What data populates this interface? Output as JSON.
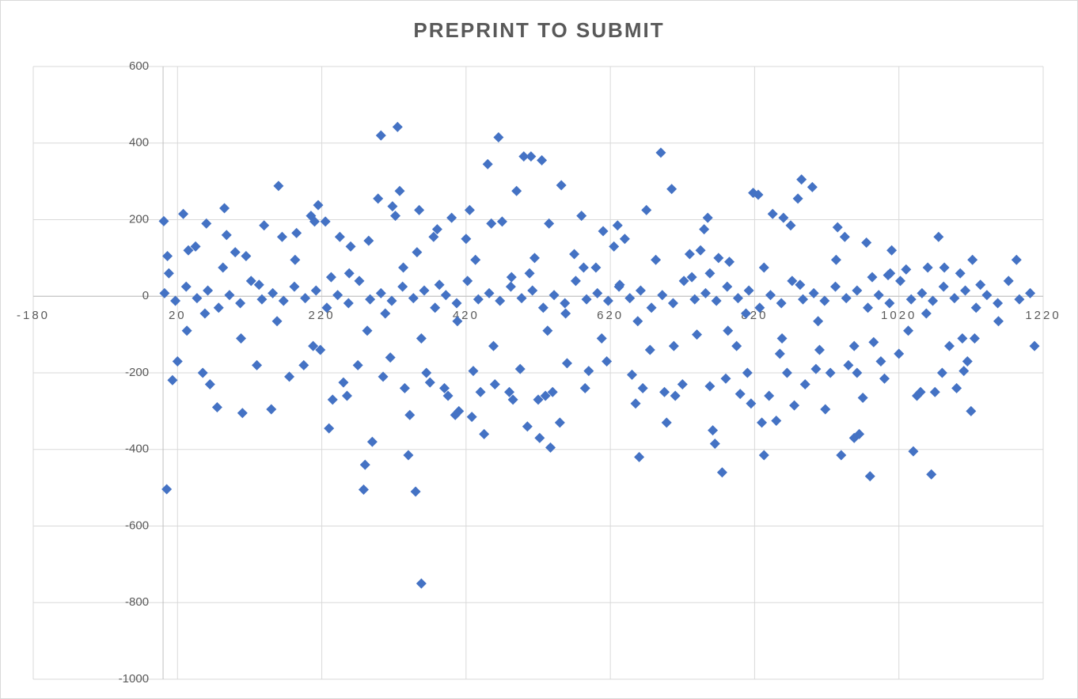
{
  "chart_data": {
    "type": "scatter",
    "title": "PREPRINT TO SUBMIT",
    "color": "#4472c4",
    "grid": true,
    "xlim": [
      -180,
      1220
    ],
    "xticks": [
      -180,
      20,
      220,
      420,
      620,
      820,
      1020,
      1220
    ],
    "ylim": [
      -1000,
      600
    ],
    "yticks": [
      -1000,
      -800,
      -600,
      -400,
      -200,
      0,
      200,
      400,
      600
    ],
    "x": [
      1,
      5,
      13,
      28,
      6,
      20,
      35,
      45,
      60,
      55,
      65,
      75,
      85,
      88,
      100,
      110,
      115,
      130,
      140,
      150,
      160,
      165,
      175,
      185,
      195,
      205,
      210,
      215,
      218,
      225,
      230,
      235,
      245,
      250,
      255,
      260,
      270,
      278,
      280,
      285,
      290,
      298,
      302,
      305,
      315,
      318,
      322,
      325,
      328,
      335,
      340,
      342,
      350,
      352,
      355,
      358,
      365,
      370,
      375,
      380,
      390,
      395,
      400,
      405,
      410,
      420,
      425,
      428,
      430,
      440,
      445,
      450,
      455,
      460,
      465,
      470,
      480,
      485,
      490,
      495,
      500,
      505,
      510,
      515,
      520,
      522,
      525,
      530,
      535,
      537,
      540,
      550,
      552,
      560,
      570,
      580,
      585,
      590,
      600,
      610,
      615,
      625,
      630,
      640,
      650,
      655,
      660,
      665,
      670,
      675,
      690,
      695,
      698,
      705,
      710,
      720,
      730,
      740,
      745,
      750,
      755,
      758,
      762,
      765,
      770,
      775,
      780,
      785,
      795,
      800,
      810,
      815,
      818,
      825,
      830,
      833,
      840,
      845,
      850,
      855,
      860,
      865,
      870,
      875,
      880,
      885,
      890,
      900,
      905,
      910,
      918,
      925,
      935,
      940,
      945,
      950,
      958,
      962,
      965,
      970,
      975,
      980,
      985,
      995,
      1000,
      1005,
      1010,
      1020,
      1030,
      1040,
      1045,
      1050,
      1060,
      1065,
      1070,
      1075,
      1080,
      1090,
      1100,
      1105,
      1110,
      1115,
      1120,
      1122,
      1125,
      2,
      17,
      32,
      47,
      62,
      77,
      92,
      107,
      122,
      137,
      152,
      167,
      182,
      197,
      212,
      227,
      242,
      257,
      272,
      287,
      302,
      317,
      332,
      347,
      362,
      377,
      392,
      407,
      422,
      437,
      452,
      467,
      482,
      497,
      512,
      527,
      542,
      557,
      572,
      587,
      602,
      617,
      632,
      647,
      662,
      677,
      692,
      707,
      722,
      737,
      752,
      767,
      782,
      797,
      812,
      827,
      842,
      857,
      872,
      887,
      902,
      917,
      932,
      947,
      962,
      977,
      992,
      1007,
      1022,
      1037,
      1052,
      1067,
      1082,
      1097,
      1112,
      1127,
      1142,
      1157,
      1172,
      1187,
      1202,
      8,
      33,
      58,
      83,
      108,
      133,
      158,
      183,
      208,
      233,
      258,
      283,
      308,
      333,
      358,
      383,
      408,
      433,
      458,
      483,
      508,
      533,
      558,
      583,
      608,
      633,
      658,
      683,
      708,
      733,
      758,
      783,
      808,
      833,
      858,
      883,
      908,
      933,
      958,
      983,
      1008,
      1033,
      1058,
      1083,
      1108,
      1133,
      1158,
      1183,
      1208
    ],
    "values": [
      196,
      -504,
      -219,
      215,
      105,
      -170,
      120,
      130,
      190,
      -200,
      -230,
      -290,
      230,
      160,
      115,
      -305,
      105,
      -180,
      185,
      -295,
      288,
      155,
      -210,
      165,
      -180,
      210,
      195,
      238,
      -140,
      195,
      -345,
      -270,
      155,
      -225,
      -260,
      130,
      -180,
      -505,
      -440,
      145,
      -380,
      255,
      420,
      -210,
      -160,
      235,
      210,
      442,
      275,
      -240,
      -415,
      -310,
      -510,
      115,
      225,
      -750,
      -200,
      -225,
      155,
      175,
      -240,
      -260,
      205,
      -310,
      -300,
      150,
      225,
      -315,
      -195,
      -250,
      -360,
      345,
      190,
      -230,
      415,
      195,
      -250,
      -270,
      275,
      -190,
      365,
      -340,
      365,
      100,
      -270,
      -370,
      355,
      -260,
      190,
      -395,
      -250,
      -330,
      290,
      -175,
      110,
      210,
      -240,
      -195,
      75,
      170,
      -170,
      130,
      185,
      150,
      -205,
      -280,
      -420,
      -240,
      225,
      -140,
      375,
      -250,
      -330,
      280,
      -260,
      -230,
      110,
      -100,
      120,
      175,
      205,
      -235,
      -350,
      -385,
      100,
      -460,
      -215,
      90,
      -130,
      -255,
      -200,
      -280,
      270,
      265,
      -330,
      -415,
      -260,
      215,
      -325,
      -150,
      205,
      -200,
      185,
      -285,
      255,
      305,
      -230,
      285,
      -190,
      -140,
      -295,
      -200,
      180,
      -415,
      155,
      -180,
      -370,
      -200,
      -360,
      -265,
      140,
      -470,
      -120,
      -170,
      -215,
      55,
      120,
      -150,
      70,
      -405,
      -260,
      -250,
      75,
      -465,
      -250,
      155,
      -200,
      -130,
      -240,
      60,
      -195,
      -170,
      -300,
      95,
      -110,
      8,
      -12,
      25,
      -5,
      15,
      -30,
      3,
      -18,
      40,
      -8,
      8,
      -12,
      25,
      -5,
      15,
      -30,
      3,
      -18,
      40,
      -8,
      8,
      -12,
      25,
      -5,
      15,
      -30,
      3,
      -18,
      40,
      -8,
      8,
      -12,
      25,
      -5,
      15,
      -30,
      3,
      -18,
      40,
      -8,
      8,
      -12,
      25,
      -5,
      15,
      -30,
      3,
      -18,
      40,
      -8,
      8,
      -12,
      25,
      -5,
      15,
      -30,
      3,
      -18,
      40,
      -8,
      8,
      -12,
      25,
      -5,
      15,
      -30,
      3,
      -18,
      40,
      -8,
      8,
      -12,
      25,
      -5,
      15,
      -30,
      3,
      -18,
      40,
      -8,
      8,
      60,
      -90,
      -45,
      75,
      -110,
      30,
      -65,
      95,
      -130,
      50,
      60,
      -90,
      -45,
      75,
      -110,
      30,
      -65,
      95,
      -130,
      50,
      60,
      -90,
      -45,
      75,
      -110,
      30,
      -65,
      95,
      -130,
      50,
      60,
      -90,
      -45,
      75,
      -110,
      30,
      -65,
      95,
      -130,
      50,
      60,
      -90,
      -45,
      75,
      -110,
      30,
      -65,
      95,
      -130
    ]
  }
}
